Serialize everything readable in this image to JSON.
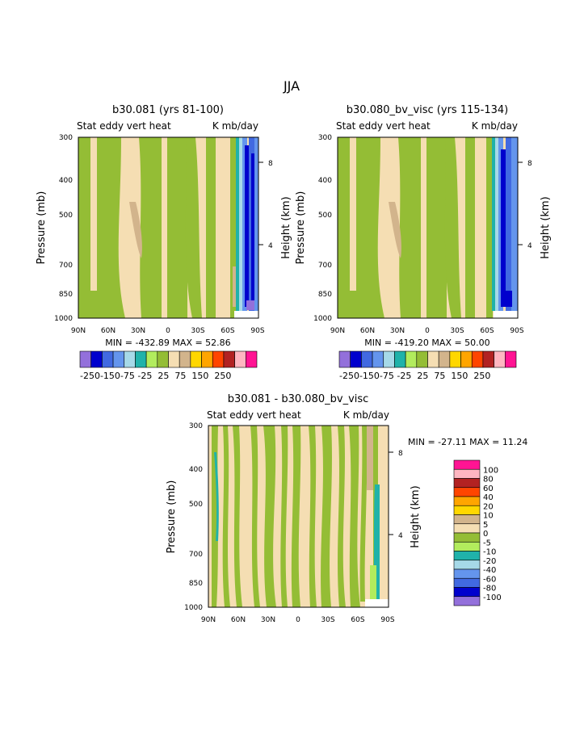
{
  "page_title": "JJA",
  "colors": {
    "violet": "#9370db",
    "navy": "#0000cd",
    "royalblue": "#4169e1",
    "cornflower": "#6495ed",
    "lightblue": "#a6d9e8",
    "teal": "#20b2aa",
    "lightgreen": "#b2ec5d",
    "olive": "#94bd35",
    "wheat": "#f5deb3",
    "tan": "#d2b48c",
    "gold": "#ffd700",
    "orange": "#ffa500",
    "orangered": "#ff4500",
    "firebrick": "#b22222",
    "pink": "#ffb6c1",
    "magenta": "#ff1493"
  },
  "chart_data": [
    {
      "type": "heatmap",
      "title": "b30.081 (yrs 81-100)",
      "subtitle_left": "Stat eddy vert heat",
      "subtitle_right": "K mb/day",
      "ylabel": "Pressure (mb)",
      "ylabel_right": "Height (km)",
      "x_ticks": [
        "90N",
        "60N",
        "30N",
        "0",
        "30S",
        "60S",
        "90S"
      ],
      "y_ticks": [
        "300",
        "400",
        "500",
        "700",
        "850",
        "1000"
      ],
      "y_ticks_right": [
        "8",
        "4"
      ],
      "min_max_text": "MIN = -432.89   MAX =  52.86",
      "min": -432.89,
      "max": 52.86,
      "dominant_values": "mostly -25 to 25 band; strong negative (-250 to -100) near 75-85S"
    },
    {
      "type": "heatmap",
      "title": "b30.080_bv_visc (yrs 115-134)",
      "subtitle_left": "Stat eddy vert heat",
      "subtitle_right": "K mb/day",
      "ylabel": "Pressure (mb)",
      "ylabel_right": "Height (km)",
      "x_ticks": [
        "90N",
        "60N",
        "30N",
        "0",
        "30S",
        "60S",
        "90S"
      ],
      "y_ticks": [
        "300",
        "400",
        "500",
        "700",
        "850",
        "1000"
      ],
      "y_ticks_right": [
        "8",
        "4"
      ],
      "min_max_text": "MIN = -419.20   MAX =  50.00",
      "min": -419.2,
      "max": 50.0,
      "dominant_values": "mostly -25 to 25 band; strong negative (-250 to -100) near 75-85S"
    },
    {
      "type": "heatmap",
      "title": "b30.081 - b30.080_bv_visc",
      "subtitle_left": "Stat eddy vert heat",
      "subtitle_right": "K mb/day",
      "ylabel": "Pressure (mb)",
      "ylabel_right": "Height (km)",
      "x_ticks": [
        "90N",
        "60N",
        "30N",
        "0",
        "30S",
        "60S",
        "90S"
      ],
      "y_ticks": [
        "300",
        "400",
        "500",
        "700",
        "850",
        "1000"
      ],
      "y_ticks_right": [
        "8",
        "4"
      ],
      "min_max_text": "MIN = -27.11   MAX =  11.24",
      "min": -27.11,
      "max": 11.24,
      "dominant_values": "alternating -5 to 5 bands; -10 to -20 near 90N and 80S"
    }
  ],
  "colorbar_top": {
    "labels": [
      "-250",
      "-150",
      "-75",
      "-25",
      "25",
      "75",
      "150",
      "250"
    ],
    "label_text": "-250-150-75 -25  25  75  150  250",
    "colors": [
      "violet",
      "navy",
      "royalblue",
      "cornflower",
      "lightblue",
      "teal",
      "lightgreen",
      "olive",
      "wheat",
      "tan",
      "gold",
      "orange",
      "orangered",
      "firebrick",
      "pink",
      "magenta"
    ]
  },
  "colorbar_diff": {
    "labels": [
      "100",
      "80",
      "60",
      "40",
      "20",
      "10",
      "5",
      "0",
      "-5",
      "-10",
      "-20",
      "-40",
      "-60",
      "-80",
      "-100"
    ],
    "colors": [
      "magenta",
      "pink",
      "firebrick",
      "orangered",
      "orange",
      "gold",
      "tan",
      "wheat",
      "olive",
      "lightgreen",
      "teal",
      "lightblue",
      "cornflower",
      "royalblue",
      "navy",
      "violet"
    ]
  }
}
